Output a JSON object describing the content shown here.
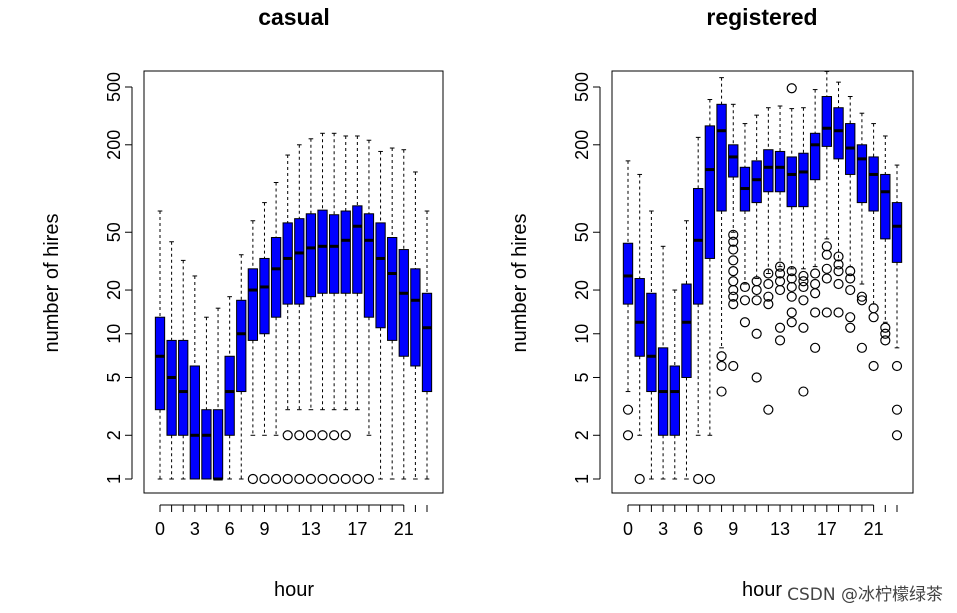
{
  "chart_data": [
    {
      "type": "boxplot",
      "title": "casual",
      "xlabel": "hour",
      "ylabel": "number of hires",
      "ylog": true,
      "ylim": [
        0.9,
        680
      ],
      "xlim": [
        -0.5,
        23.5
      ],
      "x_ticks": [
        0,
        3,
        6,
        9,
        13,
        17,
        21
      ],
      "y_ticks": [
        1,
        2,
        5,
        10,
        20,
        50,
        200,
        500
      ],
      "box_color": "#0000ff",
      "boxes": [
        {
          "hour": 0,
          "min": 1,
          "q1": 3,
          "median": 7,
          "q3": 13,
          "max": 70,
          "outliers": []
        },
        {
          "hour": 1,
          "min": 1,
          "q1": 2,
          "median": 5,
          "q3": 9,
          "max": 43,
          "outliers": []
        },
        {
          "hour": 2,
          "min": 1,
          "q1": 2,
          "median": 4,
          "q3": 9,
          "max": 32,
          "outliers": []
        },
        {
          "hour": 3,
          "min": 1,
          "q1": 1,
          "median": 2,
          "q3": 6,
          "max": 25,
          "outliers": []
        },
        {
          "hour": 4,
          "min": 1,
          "q1": 1,
          "median": 2,
          "q3": 3,
          "max": 13,
          "outliers": []
        },
        {
          "hour": 5,
          "min": 1,
          "q1": 1,
          "median": 1,
          "q3": 3,
          "max": 15,
          "outliers": []
        },
        {
          "hour": 6,
          "min": 1,
          "q1": 2,
          "median": 4,
          "q3": 7,
          "max": 18,
          "outliers": []
        },
        {
          "hour": 7,
          "min": 1,
          "q1": 4,
          "median": 10,
          "q3": 17,
          "max": 35,
          "outliers": []
        },
        {
          "hour": 8,
          "min": 2,
          "q1": 9,
          "median": 20,
          "q3": 28,
          "max": 60,
          "outliers": [
            1
          ]
        },
        {
          "hour": 9,
          "min": 2,
          "q1": 10,
          "median": 21,
          "q3": 33,
          "max": 80,
          "outliers": [
            1
          ]
        },
        {
          "hour": 10,
          "min": 2,
          "q1": 13,
          "median": 28,
          "q3": 46,
          "max": 110,
          "outliers": [
            1
          ]
        },
        {
          "hour": 11,
          "min": 3,
          "q1": 16,
          "median": 33,
          "q3": 58,
          "max": 170,
          "outliers": [
            1,
            2
          ]
        },
        {
          "hour": 12,
          "min": 3,
          "q1": 16,
          "median": 36,
          "q3": 62,
          "max": 200,
          "outliers": [
            1,
            2
          ]
        },
        {
          "hour": 13,
          "min": 3,
          "q1": 18,
          "median": 39,
          "q3": 67,
          "max": 220,
          "outliers": [
            1,
            2
          ]
        },
        {
          "hour": 14,
          "min": 3,
          "q1": 19,
          "median": 40,
          "q3": 71,
          "max": 240,
          "outliers": [
            1,
            2
          ]
        },
        {
          "hour": 15,
          "min": 3,
          "q1": 19,
          "median": 40,
          "q3": 66,
          "max": 240,
          "outliers": [
            1,
            2
          ]
        },
        {
          "hour": 16,
          "min": 3,
          "q1": 19,
          "median": 44,
          "q3": 70,
          "max": 230,
          "outliers": [
            1,
            2
          ]
        },
        {
          "hour": 17,
          "min": 3,
          "q1": 19,
          "median": 55,
          "q3": 76,
          "max": 230,
          "outliers": [
            1
          ]
        },
        {
          "hour": 18,
          "min": 2,
          "q1": 13,
          "median": 44,
          "q3": 67,
          "max": 215,
          "outliers": [
            1
          ]
        },
        {
          "hour": 19,
          "min": 1,
          "q1": 11,
          "median": 33,
          "q3": 58,
          "max": 180,
          "outliers": []
        },
        {
          "hour": 20,
          "min": 1,
          "q1": 9,
          "median": 26,
          "q3": 46,
          "max": 190,
          "outliers": []
        },
        {
          "hour": 21,
          "min": 1,
          "q1": 7,
          "median": 19,
          "q3": 38,
          "max": 185,
          "outliers": []
        },
        {
          "hour": 22,
          "min": 1,
          "q1": 6,
          "median": 17,
          "q3": 28,
          "max": 130,
          "outliers": []
        },
        {
          "hour": 23,
          "min": 1,
          "q1": 4,
          "median": 11,
          "q3": 19,
          "max": 70,
          "outliers": []
        }
      ]
    },
    {
      "type": "boxplot",
      "title": "registered",
      "xlabel": "hour",
      "ylabel": "number of hires",
      "ylog": true,
      "ylim": [
        0.9,
        680
      ],
      "xlim": [
        -0.5,
        23.5
      ],
      "x_ticks": [
        0,
        3,
        6,
        9,
        13,
        17,
        21
      ],
      "y_ticks": [
        1,
        2,
        5,
        10,
        20,
        50,
        200,
        500
      ],
      "box_color": "#0000ff",
      "boxes": [
        {
          "hour": 0,
          "min": 4,
          "q1": 16,
          "median": 25,
          "q3": 42,
          "max": 155,
          "outliers": [
            2,
            3
          ]
        },
        {
          "hour": 1,
          "min": 2,
          "q1": 7,
          "median": 12,
          "q3": 24,
          "max": 125,
          "outliers": [
            1
          ]
        },
        {
          "hour": 2,
          "min": 1,
          "q1": 4,
          "median": 7,
          "q3": 19,
          "max": 70,
          "outliers": []
        },
        {
          "hour": 3,
          "min": 1,
          "q1": 2,
          "median": 4,
          "q3": 8,
          "max": 40,
          "outliers": []
        },
        {
          "hour": 4,
          "min": 1,
          "q1": 2,
          "median": 4,
          "q3": 6,
          "max": 20,
          "outliers": []
        },
        {
          "hour": 5,
          "min": 1,
          "q1": 5,
          "median": 12,
          "q3": 22,
          "max": 60,
          "outliers": []
        },
        {
          "hour": 6,
          "min": 2,
          "q1": 16,
          "median": 44,
          "q3": 100,
          "max": 225,
          "outliers": [
            1
          ]
        },
        {
          "hour": 7,
          "min": 2,
          "q1": 33,
          "median": 135,
          "q3": 270,
          "max": 410,
          "outliers": [
            1
          ]
        },
        {
          "hour": 8,
          "min": 8,
          "q1": 70,
          "median": 250,
          "q3": 380,
          "max": 580,
          "outliers": [
            4,
            6,
            7
          ]
        },
        {
          "hour": 9,
          "min": 50,
          "q1": 120,
          "median": 165,
          "q3": 200,
          "max": 380,
          "outliers": [
            6,
            16,
            18,
            20,
            23,
            27,
            32,
            38,
            43,
            48
          ]
        },
        {
          "hour": 10,
          "min": 22,
          "q1": 70,
          "median": 100,
          "q3": 140,
          "max": 280,
          "outliers": [
            12,
            17,
            21
          ]
        },
        {
          "hour": 11,
          "min": 24,
          "q1": 80,
          "median": 115,
          "q3": 155,
          "max": 320,
          "outliers": [
            5,
            10,
            17,
            20,
            23
          ]
        },
        {
          "hour": 12,
          "min": 26,
          "q1": 95,
          "median": 140,
          "q3": 185,
          "max": 360,
          "outliers": [
            3,
            16,
            18,
            22,
            26
          ]
        },
        {
          "hour": 13,
          "min": 29,
          "q1": 95,
          "median": 140,
          "q3": 180,
          "max": 370,
          "outliers": [
            9,
            11,
            20,
            23,
            26,
            29
          ]
        },
        {
          "hour": 14,
          "min": 28,
          "q1": 75,
          "median": 125,
          "q3": 165,
          "max": 355,
          "outliers": [
            12,
            14,
            18,
            21,
            24,
            27,
            490
          ]
        },
        {
          "hour": 15,
          "min": 28,
          "q1": 75,
          "median": 130,
          "q3": 175,
          "max": 360,
          "outliers": [
            4,
            11,
            17,
            21,
            23,
            25
          ]
        },
        {
          "hour": 16,
          "min": 29,
          "q1": 115,
          "median": 200,
          "q3": 240,
          "max": 480,
          "outliers": [
            8,
            14,
            19,
            22,
            26
          ]
        },
        {
          "hour": 17,
          "min": 45,
          "q1": 195,
          "median": 260,
          "q3": 430,
          "max": 640,
          "outliers": [
            14,
            24,
            28,
            35,
            40
          ]
        },
        {
          "hour": 18,
          "min": 32,
          "q1": 160,
          "median": 250,
          "q3": 360,
          "max": 540,
          "outliers": [
            14,
            22,
            27,
            30,
            34
          ]
        },
        {
          "hour": 19,
          "min": 29,
          "q1": 125,
          "median": 190,
          "q3": 280,
          "max": 430,
          "outliers": [
            11,
            13,
            20,
            24,
            27
          ]
        },
        {
          "hour": 20,
          "min": 22,
          "q1": 80,
          "median": 160,
          "q3": 200,
          "max": 330,
          "outliers": [
            8,
            17,
            18
          ]
        },
        {
          "hour": 21,
          "min": 16,
          "q1": 70,
          "median": 125,
          "q3": 165,
          "max": 280,
          "outliers": [
            6,
            13,
            15
          ]
        },
        {
          "hour": 22,
          "min": 12,
          "q1": 45,
          "median": 95,
          "q3": 125,
          "max": 230,
          "outliers": [
            9,
            10,
            11
          ]
        },
        {
          "hour": 23,
          "min": 8,
          "q1": 31,
          "median": 55,
          "q3": 80,
          "max": 145,
          "outliers": [
            2,
            3,
            6
          ]
        }
      ]
    }
  ],
  "watermark": "CSDN @冰柠檬绿茶"
}
